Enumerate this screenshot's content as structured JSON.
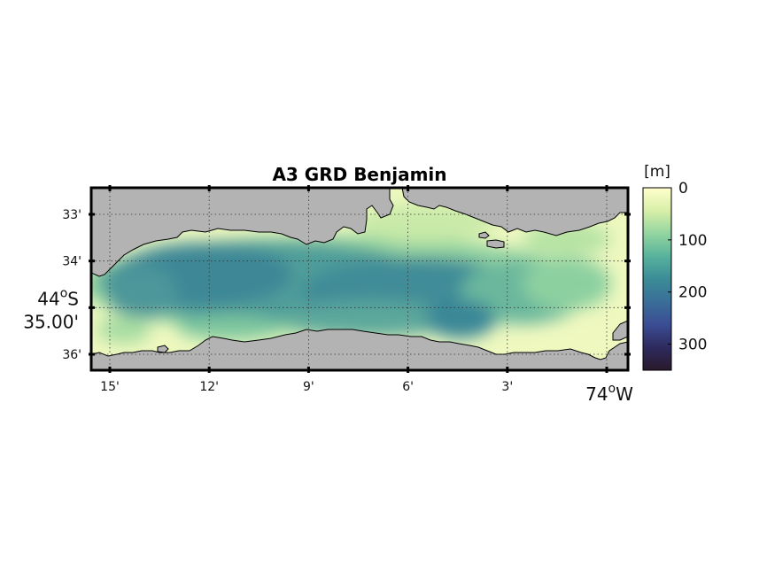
{
  "title": "A3 GRD Benjamin",
  "colorbar": {
    "unit_label": "[m]",
    "min": 0,
    "max": 350,
    "reversed": true,
    "ticks": [
      {
        "value": 0,
        "label": "0"
      },
      {
        "value": 100,
        "label": "100"
      },
      {
        "value": 200,
        "label": "200"
      },
      {
        "value": 300,
        "label": "300"
      }
    ],
    "stops": [
      "#ffffcc",
      "#d8efa8",
      "#93d5a0",
      "#58b29c",
      "#3b8c97",
      "#3a6e98",
      "#3b4d93",
      "#2e2a5e",
      "#281a2c"
    ]
  },
  "map": {
    "land_color": "#b3b3b3",
    "x_ticks": [
      {
        "lon_min": 15,
        "label": "15'"
      },
      {
        "lon_min": 12,
        "label": "12'"
      },
      {
        "lon_min": 9,
        "label": "9'"
      },
      {
        "lon_min": 6,
        "label": "6'"
      },
      {
        "lon_min": 3,
        "label": "3'"
      },
      {
        "lon_min": 0,
        "label": "74",
        "suffix": "W",
        "major": true
      }
    ],
    "y_ticks": [
      {
        "lat_min": 33,
        "label": "33'"
      },
      {
        "lat_min": 34,
        "label": "34'"
      },
      {
        "lat_min": 35,
        "label_deg": "44",
        "label_hem": "S",
        "label_min": "35.00'",
        "major": true
      },
      {
        "lat_min": 36,
        "label": "36'"
      }
    ]
  }
}
